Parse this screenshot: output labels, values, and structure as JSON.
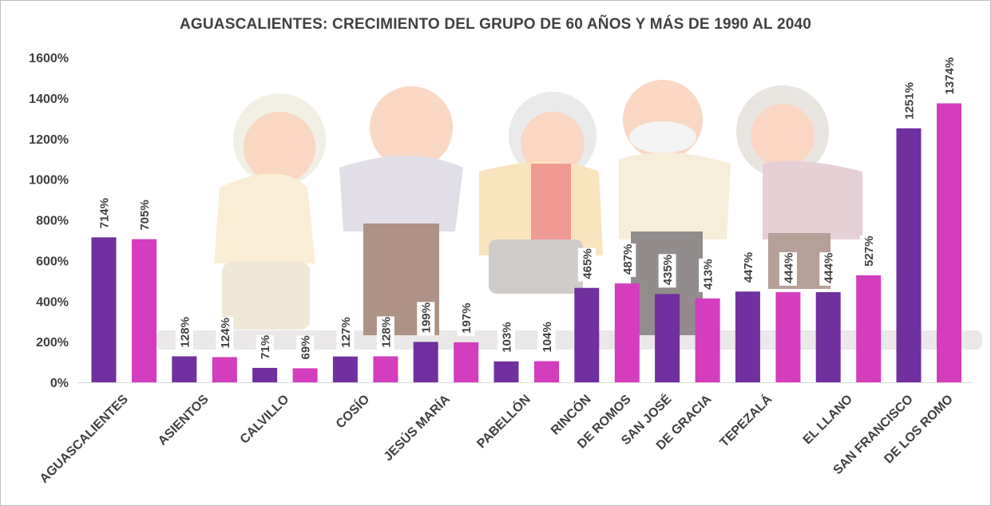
{
  "chart_data": {
    "type": "bar",
    "title": "AGUASCALIENTES: CRECIMIENTO DEL GRUPO DE 60 AÑOS  Y MÁS DE 1990 AL 2040",
    "xlabel": "",
    "ylabel": "",
    "ylim": [
      0,
      1600
    ],
    "yticks": [
      "0%",
      "200%",
      "400%",
      "600%",
      "800%",
      "1000%",
      "1200%",
      "1400%",
      "1600%"
    ],
    "categories": [
      "AGUASCALIENTES",
      "ASIENTOS",
      "CALVILLO",
      "COSÍO",
      "JESÚS MARÍA",
      "PABELLÓN",
      "RINCÓN DE ROMOS",
      "SAN JOSÉ DE GRACIA",
      "TEPEZALÁ",
      "EL LLANO",
      "SAN FRANCISCO DE LOS ROMO"
    ],
    "category_labels": [
      [
        "AGUASCALIENTES"
      ],
      [
        "ASIENTOS"
      ],
      [
        "CALVILLO"
      ],
      [
        "COSÍO"
      ],
      [
        "JESÚS MARÍA"
      ],
      [
        "PABELLÓN"
      ],
      [
        "RINCÓN",
        "DE ROMOS"
      ],
      [
        "SAN JOSÉ",
        "DE GRACIA"
      ],
      [
        "TEPEZALÁ"
      ],
      [
        "EL LLANO"
      ],
      [
        "SAN FRANCISCO",
        "DE LOS ROMO"
      ]
    ],
    "series": [
      {
        "name": "1990",
        "color": "#7030a0",
        "values": [
          714,
          128,
          71,
          127,
          199,
          103,
          465,
          435,
          447,
          444,
          1251
        ]
      },
      {
        "name": "2040",
        "color": "#d43dbd",
        "values": [
          705,
          124,
          69,
          128,
          197,
          104,
          487,
          413,
          444,
          527,
          1374
        ]
      }
    ],
    "data_labels": [
      [
        "714%",
        "128%",
        "71%",
        "127%",
        "199%",
        "103%",
        "465%",
        "435%",
        "447%",
        "444%",
        "1251%"
      ],
      [
        "705%",
        "124%",
        "69%",
        "128%",
        "197%",
        "104%",
        "487%",
        "413%",
        "444%",
        "527%",
        "1374%"
      ]
    ],
    "grid": false,
    "legend": "none",
    "background_image": "elderly-people-illustration"
  }
}
